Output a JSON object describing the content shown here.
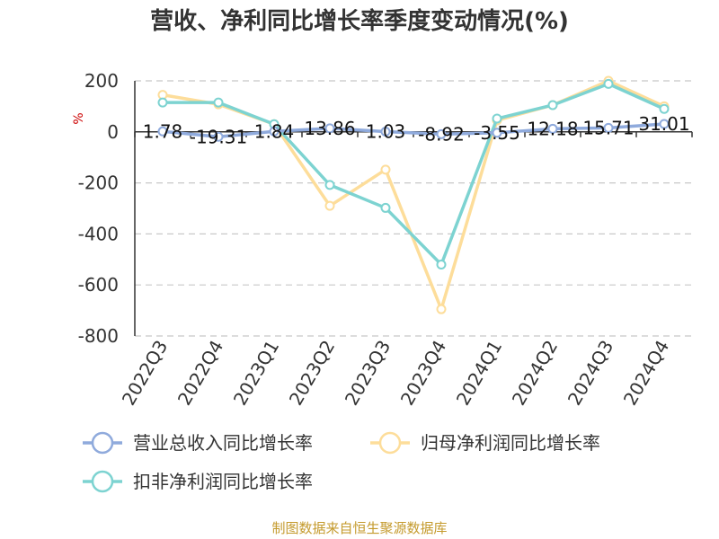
{
  "chart_data": {
    "type": "line",
    "title": "营收、净利同比增长率季度变动情况(%)",
    "ylabel": "%",
    "categories": [
      "2022Q3",
      "2022Q4",
      "2023Q1",
      "2023Q2",
      "2023Q3",
      "2023Q4",
      "2024Q1",
      "2024Q2",
      "2024Q3",
      "2024Q4"
    ],
    "ylim": [
      -800,
      200
    ],
    "yticks": [
      200,
      0,
      -200,
      -400,
      -600,
      -800
    ],
    "grid": true,
    "legend_position": "bottom",
    "series": [
      {
        "name": "营业总收入同比增长率",
        "color": "#8faadc",
        "values": [
          1.78,
          -19.31,
          1.84,
          13.86,
          1.03,
          -8.92,
          -3.55,
          12.18,
          15.71,
          31.01
        ],
        "labels": [
          "1.78",
          "-19.31",
          "1.84",
          "13.86",
          "1.03",
          "-8.92",
          "-3.55",
          "12.18",
          "15.71",
          "31.01"
        ]
      },
      {
        "name": "归母净利润同比增长率",
        "color": "#fddd9a",
        "values": [
          145,
          108,
          30,
          -290,
          -148,
          -695,
          45,
          105,
          200,
          100
        ]
      },
      {
        "name": "扣非净利润同比增长率",
        "color": "#7dd3d1",
        "values": [
          115,
          115,
          30,
          -208,
          -298,
          -520,
          52,
          105,
          188,
          90
        ]
      }
    ]
  },
  "source": "制图数据来自恒生聚源数据库"
}
